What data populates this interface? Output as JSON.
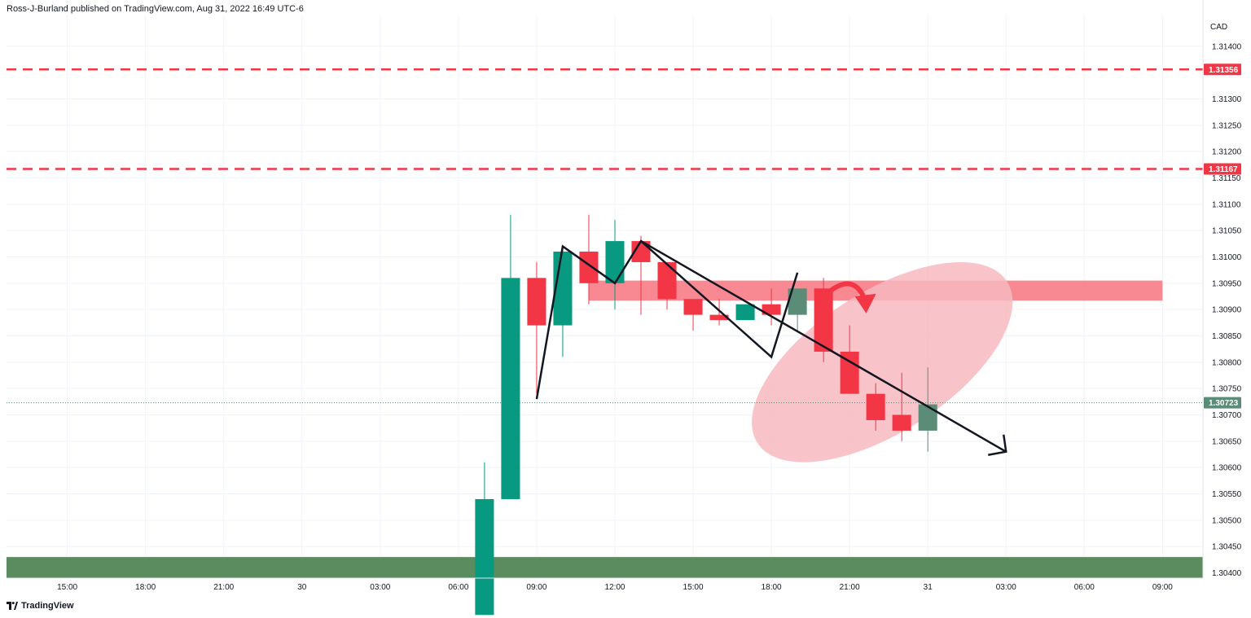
{
  "header": {
    "publisher_text": "Ross-J-Burland published on TradingView.com, Aug 31, 2022 16:49 UTC-6"
  },
  "footer": {
    "brand": "TradingView",
    "logo_icon": "tradingview-logo-icon"
  },
  "colors": {
    "up": "#089981",
    "up_muted": "#5b8c78",
    "down": "#f23645",
    "level_line": "#f23645",
    "support_zone": "#5b8c5f",
    "resistance_zone": "#f77b86",
    "ellipse": "#f7b9c0",
    "drawing": "#131722",
    "grid": "#f0f3fa",
    "last_price": "#5b8c78"
  },
  "chart_data": {
    "type": "candlestick",
    "title": "",
    "currency_label": "CAD",
    "y_ticks": [
      "1.31400",
      "1.31300",
      "1.31250",
      "1.31200",
      "1.31150",
      "1.31100",
      "1.31050",
      "1.31000",
      "1.30950",
      "1.30900",
      "1.30850",
      "1.30800",
      "1.30750",
      "1.30700",
      "1.30650",
      "1.30600",
      "1.30550",
      "1.30500",
      "1.30450",
      "1.30400"
    ],
    "x_ticks": [
      {
        "label": "15:00",
        "hour": 15
      },
      {
        "label": "18:00",
        "hour": 18
      },
      {
        "label": "21:00",
        "hour": 21
      },
      {
        "label": "30",
        "hour": 24
      },
      {
        "label": "03:00",
        "hour": 27
      },
      {
        "label": "06:00",
        "hour": 30
      },
      {
        "label": "09:00",
        "hour": 33
      },
      {
        "label": "12:00",
        "hour": 36
      },
      {
        "label": "15:00",
        "hour": 39
      },
      {
        "label": "18:00",
        "hour": 42
      },
      {
        "label": "21:00",
        "hour": 45
      },
      {
        "label": "31",
        "hour": 48
      },
      {
        "label": "03:00",
        "hour": 51
      },
      {
        "label": "06:00",
        "hour": 54
      },
      {
        "label": "09:00",
        "hour": 57
      }
    ],
    "ylim": [
      1.3039,
      1.3146
    ],
    "xlim_hours": [
      12.67,
      58.55
    ],
    "candles": [
      {
        "hour": 31,
        "o": 1.3032,
        "h": 1.3061,
        "l": 1.3032,
        "c": 1.3054,
        "style": "up"
      },
      {
        "hour": 32,
        "o": 1.3054,
        "h": 1.3108,
        "l": 1.3054,
        "c": 1.3096,
        "style": "up"
      },
      {
        "hour": 33,
        "o": 1.3096,
        "h": 1.3099,
        "l": 1.3074,
        "c": 1.3087,
        "style": "down"
      },
      {
        "hour": 34,
        "o": 1.3087,
        "h": 1.3102,
        "l": 1.3081,
        "c": 1.3101,
        "style": "up"
      },
      {
        "hour": 35,
        "o": 1.3101,
        "h": 1.3108,
        "l": 1.3091,
        "c": 1.3095,
        "style": "down"
      },
      {
        "hour": 36,
        "o": 1.3095,
        "h": 1.3107,
        "l": 1.309,
        "c": 1.3103,
        "style": "up"
      },
      {
        "hour": 37,
        "o": 1.3103,
        "h": 1.3104,
        "l": 1.3089,
        "c": 1.3099,
        "style": "down"
      },
      {
        "hour": 38,
        "o": 1.3099,
        "h": 1.3099,
        "l": 1.309,
        "c": 1.3092,
        "style": "down"
      },
      {
        "hour": 39,
        "o": 1.3092,
        "h": 1.3092,
        "l": 1.3086,
        "c": 1.3089,
        "style": "down"
      },
      {
        "hour": 40,
        "o": 1.3089,
        "h": 1.3092,
        "l": 1.3087,
        "c": 1.3088,
        "style": "down"
      },
      {
        "hour": 41,
        "o": 1.3088,
        "h": 1.3091,
        "l": 1.3088,
        "c": 1.3091,
        "style": "up"
      },
      {
        "hour": 42,
        "o": 1.3091,
        "h": 1.3094,
        "l": 1.3087,
        "c": 1.3089,
        "style": "down"
      },
      {
        "hour": 43,
        "o": 1.3089,
        "h": 1.3094,
        "l": 1.3086,
        "c": 1.3094,
        "style": "up_muted"
      },
      {
        "hour": 44,
        "o": 1.3094,
        "h": 1.3096,
        "l": 1.308,
        "c": 1.3082,
        "style": "down"
      },
      {
        "hour": 45,
        "o": 1.3082,
        "h": 1.3087,
        "l": 1.3074,
        "c": 1.3074,
        "style": "down"
      },
      {
        "hour": 46,
        "o": 1.3074,
        "h": 1.3076,
        "l": 1.3067,
        "c": 1.3069,
        "style": "down"
      },
      {
        "hour": 47,
        "o": 1.307,
        "h": 1.3078,
        "l": 1.3065,
        "c": 1.3067,
        "style": "down"
      },
      {
        "hour": 48,
        "o": 1.3067,
        "h": 1.3079,
        "l": 1.3063,
        "c": 1.3072,
        "style": "up_muted"
      }
    ],
    "levels": [
      {
        "price": 1.31356,
        "label": "1.31356",
        "style": "dashed"
      },
      {
        "price": 1.31167,
        "label": "1.31167",
        "style": "dashed"
      }
    ],
    "last_price": {
      "price": 1.30723,
      "label": "1.30723"
    },
    "zones": [
      {
        "name": "support-zone",
        "from_hour": 12.67,
        "to_hour": 58.55,
        "top": 1.3043,
        "bottom": 1.3039,
        "color": "support_zone"
      },
      {
        "name": "resistance-zone",
        "from_hour": 35,
        "to_hour": 57,
        "top": 1.30955,
        "bottom": 1.30917,
        "color": "resistance_zone"
      }
    ],
    "annotations": {
      "zigzag": [
        [
          33,
          1.3073
        ],
        [
          34,
          1.3102
        ],
        [
          36,
          1.3095
        ],
        [
          37,
          1.3103
        ],
        [
          42,
          1.3081
        ],
        [
          43,
          1.3097
        ]
      ],
      "trend_arrow": [
        [
          37,
          1.3103
        ],
        [
          51,
          1.3063
        ]
      ],
      "curved_arrow": "down-right",
      "ellipse_center": [
        46.25,
        1.308
      ],
      "ellipse_radius_hours": 5.7,
      "ellipse_radius_price": 0.00133
    }
  }
}
